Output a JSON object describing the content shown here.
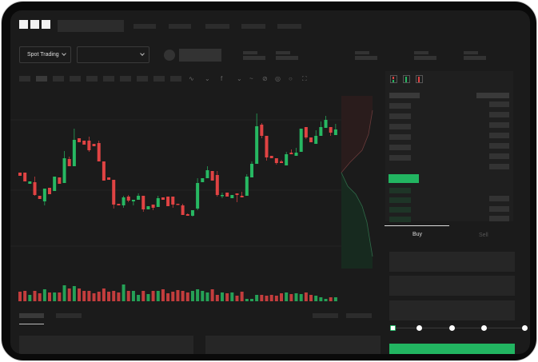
{
  "header": {
    "logo": "OKX"
  },
  "toolbar": {
    "market_select": "Spot Trading",
    "pair_select": ""
  },
  "chart_tools": [
    "indicator-icon",
    "chart-type-icon",
    "fx-icon",
    "line-icon",
    "draw-icon",
    "measure-icon",
    "settings-icon",
    "fullscreen-icon"
  ],
  "colors": {
    "up": "#27b862",
    "down": "#e04343",
    "background": "#1b1b1b",
    "accent": "#22b561"
  },
  "candles": [
    [
      77,
      77,
      73,
      73
    ],
    [
      77,
      77,
      66,
      66
    ],
    [
      63,
      66,
      63,
      66
    ],
    [
      65,
      72,
      48,
      49
    ],
    [
      48,
      48,
      44,
      44
    ],
    [
      41,
      57,
      36,
      57
    ],
    [
      58,
      58,
      50,
      50
    ],
    [
      54,
      72,
      54,
      72
    ],
    [
      71,
      71,
      63,
      63
    ],
    [
      64,
      104,
      64,
      95
    ],
    [
      94,
      97,
      85,
      85
    ],
    [
      85,
      132,
      85,
      118
    ],
    [
      120,
      120,
      115,
      115
    ],
    [
      117,
      117,
      112,
      112
    ],
    [
      117,
      122,
      103,
      105
    ],
    [
      113,
      113,
      110,
      110
    ],
    [
      114,
      117,
      91,
      91
    ],
    [
      91,
      91,
      67,
      67
    ],
    [
      71,
      71,
      68,
      68
    ],
    [
      68,
      68,
      32,
      37
    ],
    [
      38,
      38,
      36,
      36
    ],
    [
      36,
      48,
      33,
      46
    ],
    [
      47,
      49,
      40,
      42
    ],
    [
      41,
      43,
      36,
      43
    ],
    [
      43,
      51,
      43,
      48
    ],
    [
      48,
      48,
      28,
      31
    ],
    [
      31,
      35,
      31,
      35
    ],
    [
      37,
      37,
      30,
      33
    ],
    [
      34,
      48,
      34,
      45
    ],
    [
      46,
      46,
      43,
      43
    ],
    [
      47,
      47,
      35,
      35
    ],
    [
      47,
      47,
      33,
      37
    ],
    [
      38,
      38,
      37,
      37
    ],
    [
      36,
      38,
      24,
      24
    ],
    [
      25,
      26,
      23,
      23
    ],
    [
      23,
      30,
      22,
      30
    ],
    [
      32,
      70,
      30,
      64
    ],
    [
      65,
      70,
      65,
      70
    ],
    [
      70,
      85,
      70,
      80
    ],
    [
      79,
      79,
      67,
      67
    ],
    [
      74,
      79,
      47,
      49
    ],
    [
      48,
      52,
      45,
      49
    ],
    [
      52,
      52,
      47,
      47
    ],
    [
      45,
      49,
      45,
      49
    ],
    [
      51,
      51,
      40,
      49
    ],
    [
      48,
      53,
      46,
      46
    ],
    [
      48,
      75,
      48,
      72
    ],
    [
      71,
      91,
      71,
      88
    ],
    [
      88,
      151,
      88,
      135
    ],
    [
      137,
      139,
      120,
      123
    ],
    [
      123,
      123,
      92,
      96
    ],
    [
      98,
      98,
      95,
      95
    ],
    [
      95,
      95,
      87,
      89
    ],
    [
      91,
      93,
      89,
      89
    ],
    [
      86,
      103,
      86,
      100
    ],
    [
      102,
      106,
      100,
      100
    ],
    [
      98,
      108,
      98,
      102
    ],
    [
      103,
      132,
      103,
      132
    ],
    [
      134,
      134,
      119,
      121
    ],
    [
      121,
      121,
      115,
      115
    ],
    [
      113,
      130,
      113,
      123
    ],
    [
      123,
      141,
      123,
      134
    ],
    [
      133,
      148,
      133,
      143
    ],
    [
      134,
      134,
      123,
      127
    ],
    [
      124,
      138,
      124,
      131
    ]
  ],
  "volumes": [
    12,
    13,
    8,
    13,
    10,
    15,
    11,
    11,
    11,
    20,
    16,
    19,
    16,
    13,
    13,
    10,
    12,
    16,
    12,
    13,
    11,
    21,
    13,
    13,
    8,
    13,
    9,
    13,
    13,
    15,
    10,
    12,
    14,
    13,
    11,
    13,
    15,
    13,
    11,
    15,
    8,
    11,
    10,
    11,
    7,
    12,
    3,
    3,
    8,
    8,
    7,
    8,
    7,
    10,
    11,
    9,
    10,
    9,
    11,
    8,
    7,
    5,
    3,
    5,
    5
  ],
  "trade": {
    "buy_tab": "Buy",
    "sell_tab": "Sell",
    "active_tab": "Buy",
    "slider_percent": 0
  }
}
